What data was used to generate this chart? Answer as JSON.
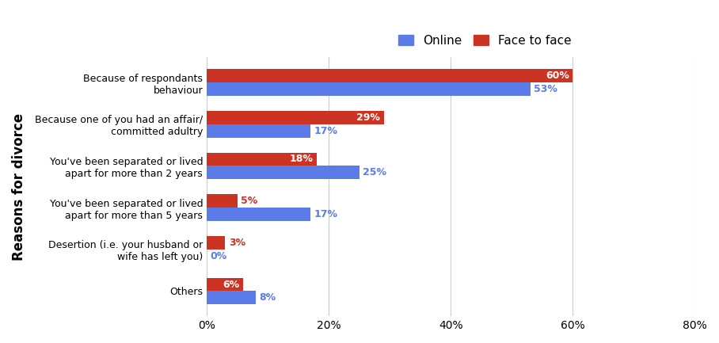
{
  "categories": [
    "Because of respondants\nbehaviour",
    "Because one of you had an affair/\ncommitted adultry",
    "You've been separated or lived\napart for more than 2 years",
    "You've been separated or lived\napart for more than 5 years",
    "Desertion (i.e. your husband or\nwife has left you)",
    "Others"
  ],
  "online": [
    53,
    17,
    25,
    17,
    0,
    8
  ],
  "face_to_face": [
    60,
    29,
    18,
    5,
    3,
    6
  ],
  "online_color": "#5B7BE8",
  "face_to_face_color": "#CC3322",
  "ylabel": "Reasons for divorce",
  "bar_height": 0.32,
  "xlim": [
    0,
    80
  ],
  "xticks": [
    0,
    20,
    40,
    60,
    80
  ],
  "xtick_labels": [
    "0%",
    "20%",
    "40%",
    "60%",
    "80%"
  ],
  "legend_labels": [
    "Online",
    "Face to face"
  ],
  "background_color": "#ffffff",
  "grid_color": "#cccccc"
}
